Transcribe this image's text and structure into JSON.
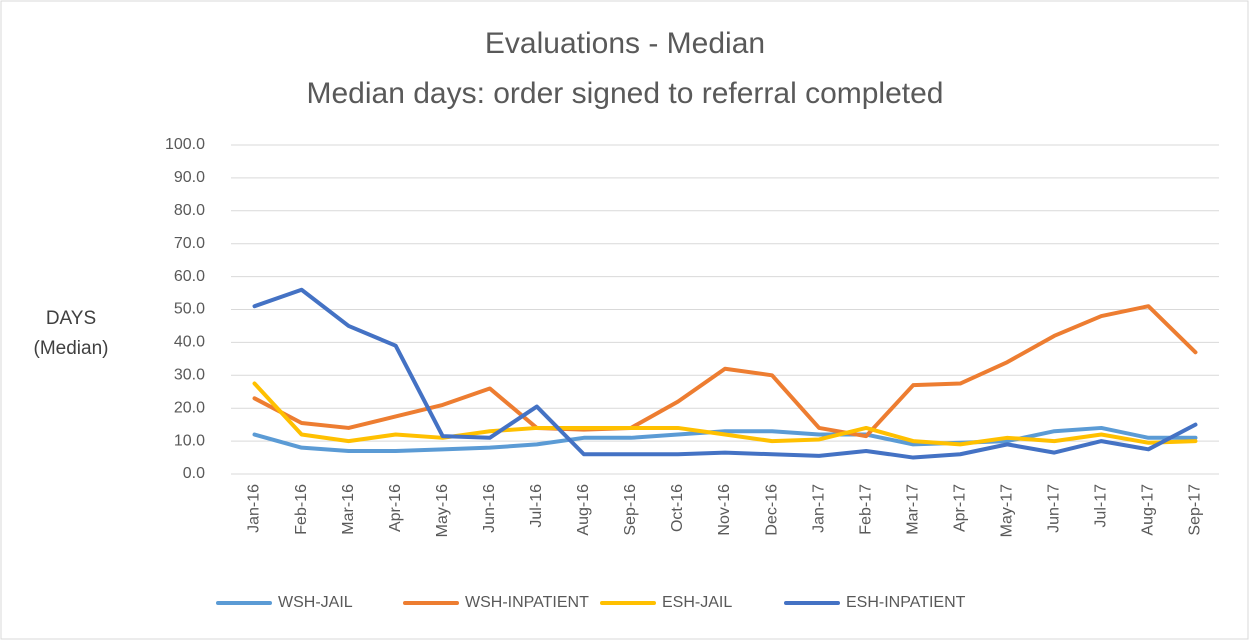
{
  "chart_data": {
    "type": "line",
    "title": "Evaluations - Median",
    "subtitle": "Median days: order signed to referral completed",
    "y_label": "DAYS (Median)",
    "categories": [
      "Jan-16",
      "Feb-16",
      "Mar-16",
      "Apr-16",
      "May-16",
      "Jun-16",
      "Jul-16",
      "Aug-16",
      "Sep-16",
      "Oct-16",
      "Nov-16",
      "Dec-16",
      "Jan-17",
      "Feb-17",
      "Mar-17",
      "Apr-17",
      "May-17",
      "Jun-17",
      "Jul-17",
      "Aug-17",
      "Sep-17"
    ],
    "series": [
      {
        "name": "WSH-JAIL",
        "color": "#5b9bd5",
        "values": [
          12,
          8,
          7,
          7,
          7.5,
          8,
          9,
          11,
          11,
          12,
          13,
          13,
          12,
          12,
          9,
          9.5,
          10,
          13,
          14,
          11,
          11
        ]
      },
      {
        "name": "WSH-INPATIENT",
        "color": "#ed7d31",
        "values": [
          23,
          15.5,
          14,
          17.5,
          21,
          26,
          14,
          13.5,
          14,
          22,
          32,
          30,
          14,
          11.5,
          27,
          27.5,
          34,
          42,
          48,
          51,
          37
        ]
      },
      {
        "name": "ESH-JAIL",
        "color": "#ffc000",
        "values": [
          27.5,
          12,
          10,
          12,
          11,
          13,
          14,
          14,
          14,
          14,
          12,
          10,
          10.5,
          14,
          10,
          9,
          11,
          10,
          12,
          9.5,
          10
        ]
      },
      {
        "name": "ESH-INPATIENT",
        "color": "#4472c4",
        "values": [
          51,
          56,
          45,
          39,
          11.5,
          11,
          20.5,
          6,
          6,
          6,
          6.5,
          6,
          5.5,
          7,
          5,
          6,
          9,
          6.5,
          10,
          7.5,
          15
        ]
      }
    ],
    "ylim": [
      0,
      100
    ],
    "yticks": [
      {
        "value": 0,
        "label": "0.0"
      },
      {
        "value": 10,
        "label": "10.0"
      },
      {
        "value": 20,
        "label": "20.0"
      },
      {
        "value": 30,
        "label": "30.0"
      },
      {
        "value": 40,
        "label": "40.0"
      },
      {
        "value": 50,
        "label": "50.0"
      },
      {
        "value": 60,
        "label": "60.0"
      },
      {
        "value": 70,
        "label": "70.0"
      },
      {
        "value": 80,
        "label": "80.0"
      },
      {
        "value": 90,
        "label": "90.0"
      },
      {
        "value": 100,
        "label": "100.0"
      }
    ],
    "grid": true,
    "legend": "bottom"
  }
}
